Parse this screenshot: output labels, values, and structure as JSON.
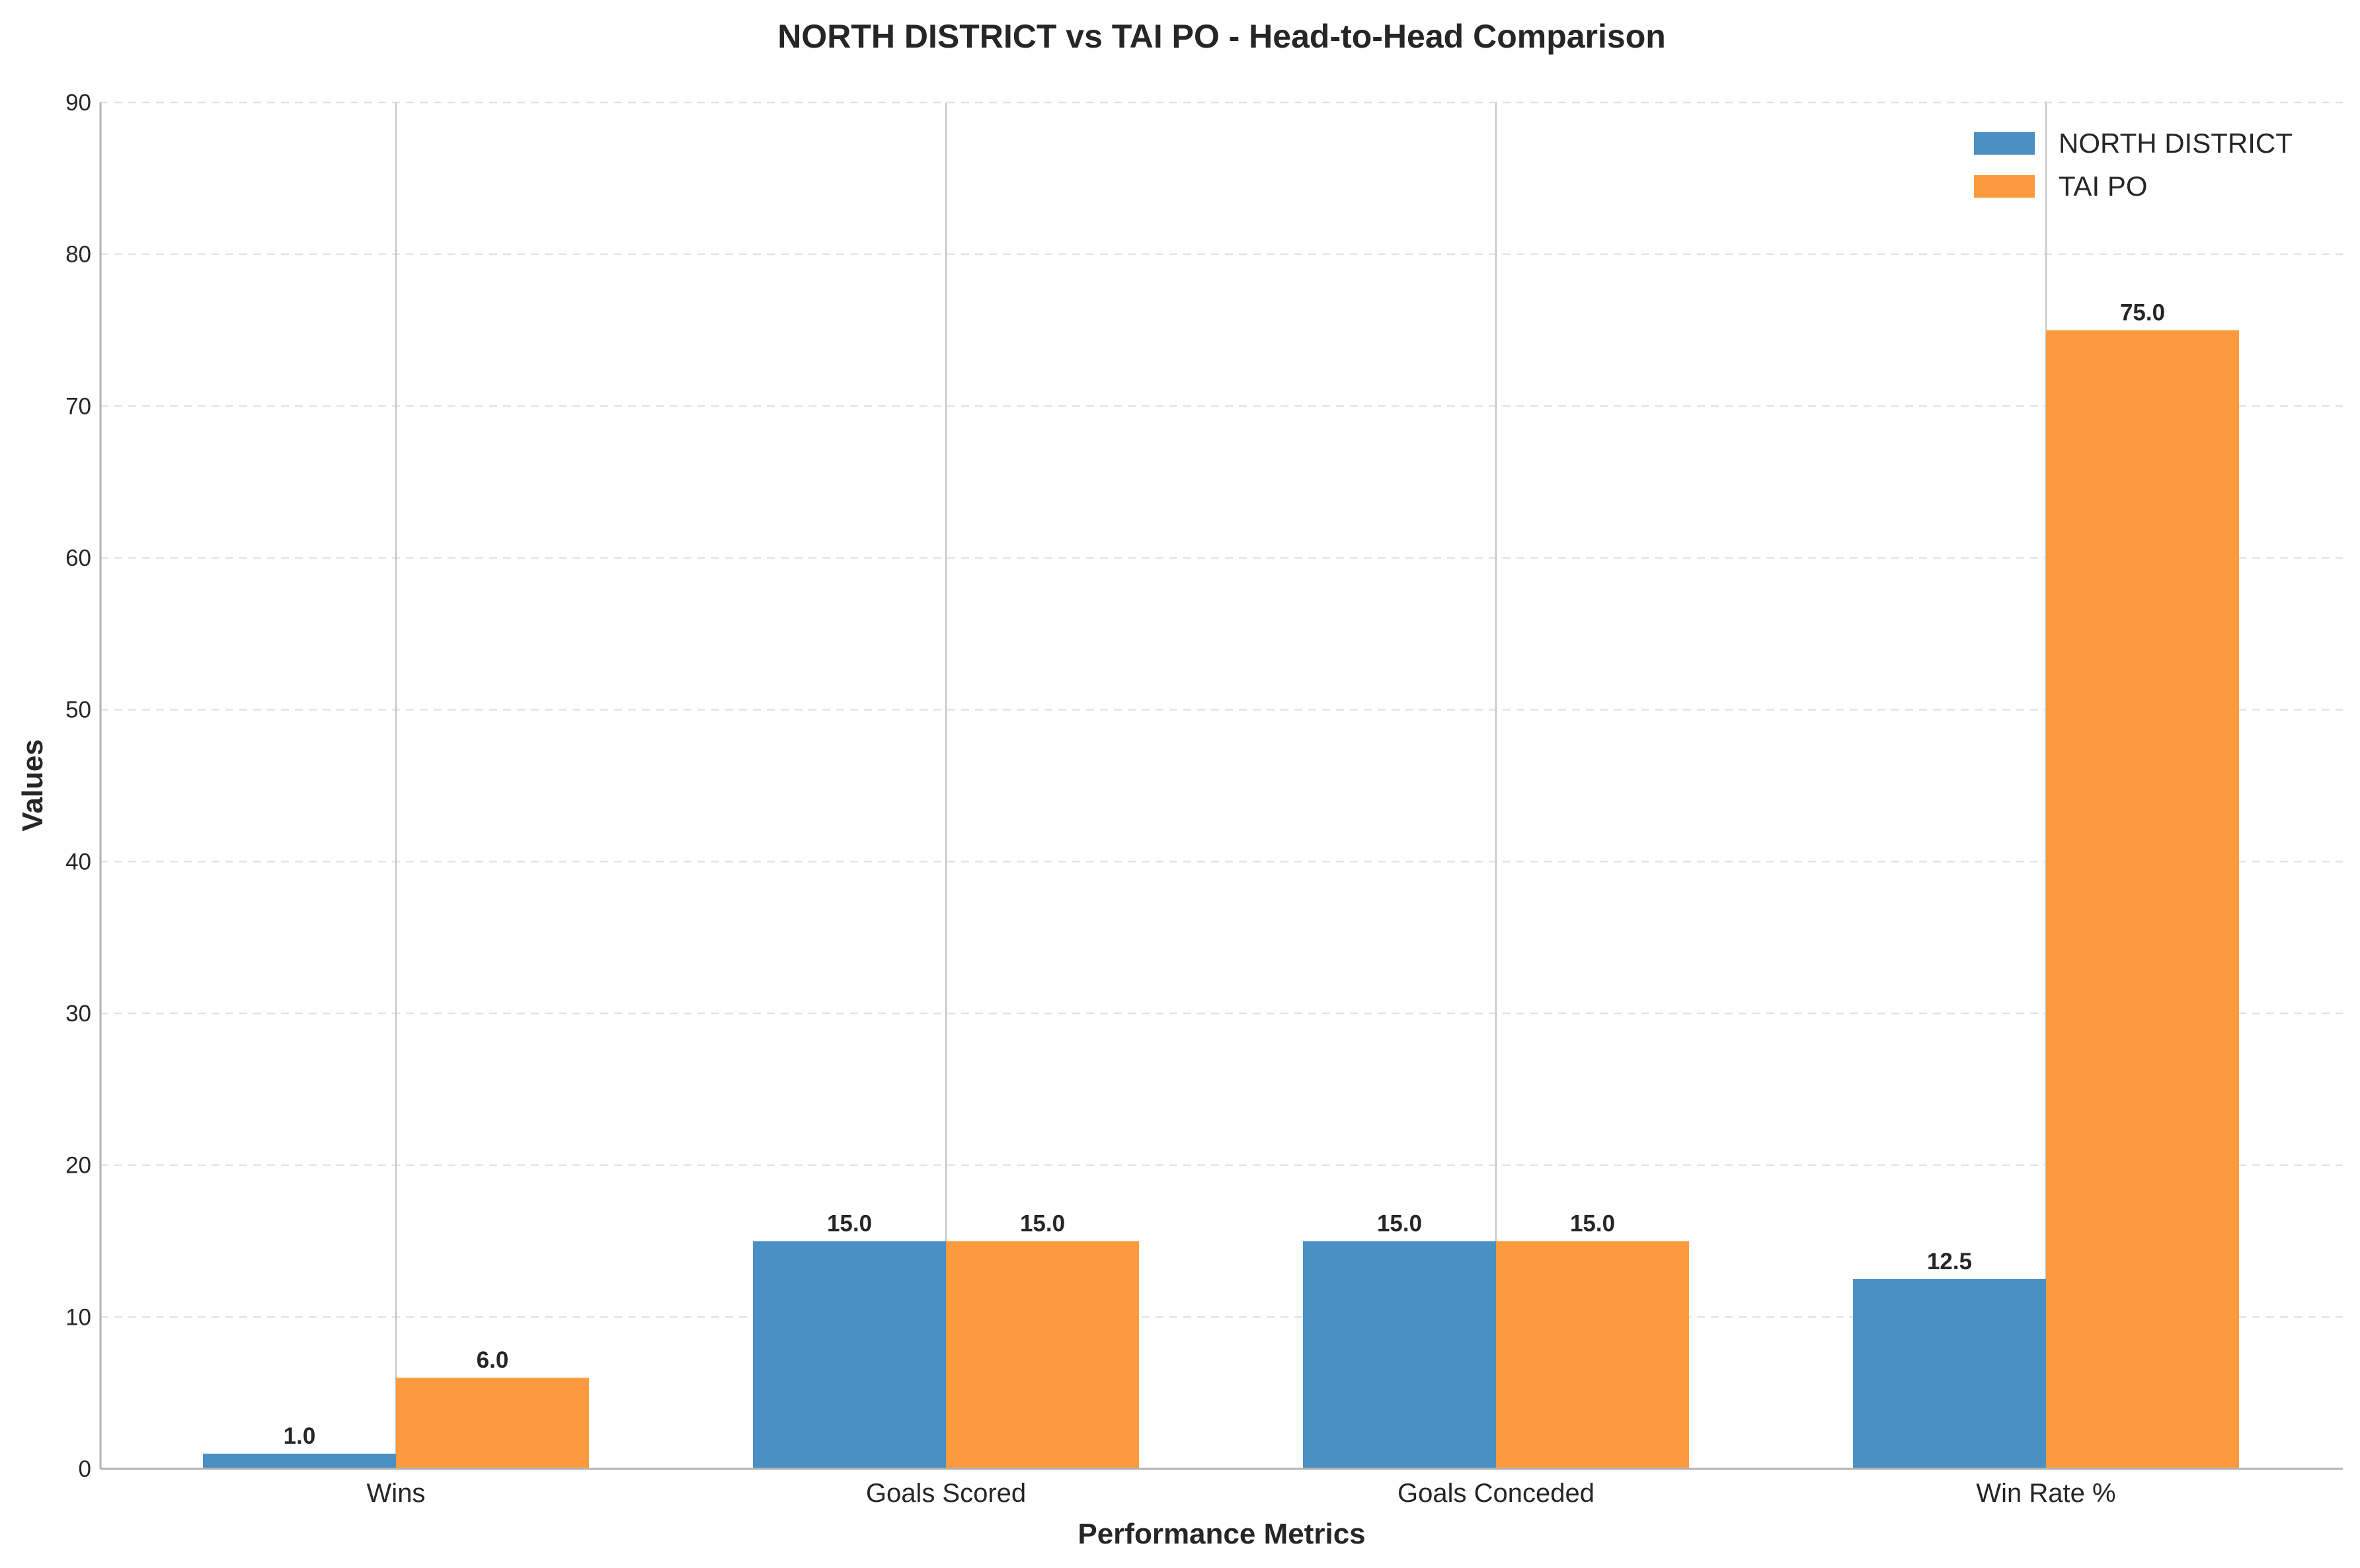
{
  "chart_data": {
    "type": "bar",
    "title": "NORTH DISTRICT vs TAI PO - Head-to-Head Comparison",
    "xlabel": "Performance Metrics",
    "ylabel": "Values",
    "categories": [
      "Wins",
      "Goals Scored",
      "Goals Conceded",
      "Win Rate %"
    ],
    "series": [
      {
        "name": "NORTH DISTRICT",
        "color": "#4a90c4",
        "values": [
          1.0,
          15.0,
          15.0,
          12.5
        ],
        "labels": [
          "1.0",
          "15.0",
          "15.0",
          "12.5"
        ]
      },
      {
        "name": "TAI PO",
        "color": "#fd9a3f",
        "values": [
          6.0,
          15.0,
          15.0,
          75.0
        ],
        "labels": [
          "6.0",
          "15.0",
          "15.0",
          "75.0"
        ]
      }
    ],
    "ylim": [
      0,
      90
    ],
    "yticks": [
      0,
      10,
      20,
      30,
      40,
      50,
      60,
      70,
      80,
      90
    ],
    "ytick_labels": [
      "0",
      "10",
      "20",
      "30",
      "40",
      "50",
      "60",
      "70",
      "80",
      "90"
    ],
    "grid": true,
    "legend_position": "top-right"
  }
}
